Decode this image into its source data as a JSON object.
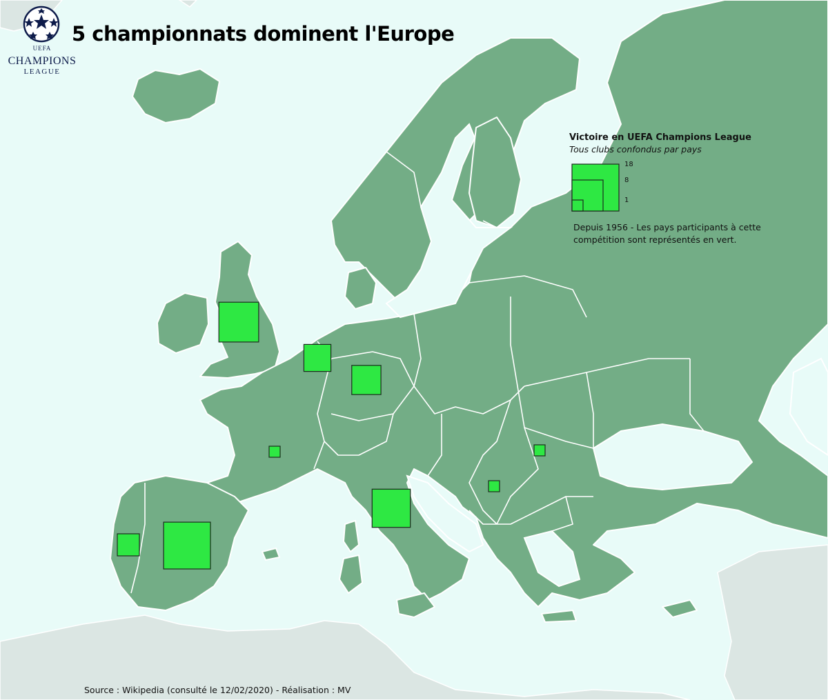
{
  "title": "5 championnats dominent l'Europe",
  "logo": {
    "uefa_text": "UEFA",
    "main_text": "CHAMPIONS",
    "sub_text": "LEAGUE",
    "color": "#0d1b4a"
  },
  "legend": {
    "title": "Victoire en UEFA Champions League",
    "subtitle": "Tous clubs confondus par pays",
    "ticks": [
      "18",
      "8",
      "1"
    ],
    "note": "Depuis 1956 - Les pays participants à cette compétition sont représentés en vert."
  },
  "source": "Source : Wikipedia (consulté le 12/02/2020) - Réalisation : MV",
  "colors": {
    "sea": "#e8fbf8",
    "land_participant": "#73ad86",
    "land_other": "#dbe6e3",
    "win_marker": "#2ee843"
  },
  "win_markers": [
    {
      "country": "England",
      "wins": 13
    },
    {
      "country": "Netherlands",
      "wins": 6
    },
    {
      "country": "Germany",
      "wins": 7
    },
    {
      "country": "France",
      "wins": 1
    },
    {
      "country": "Italy",
      "wins": 12
    },
    {
      "country": "Spain",
      "wins": 18
    },
    {
      "country": "Portugal",
      "wins": 4
    },
    {
      "country": "Romania",
      "wins": 1
    },
    {
      "country": "Serbia",
      "wins": 1
    }
  ]
}
